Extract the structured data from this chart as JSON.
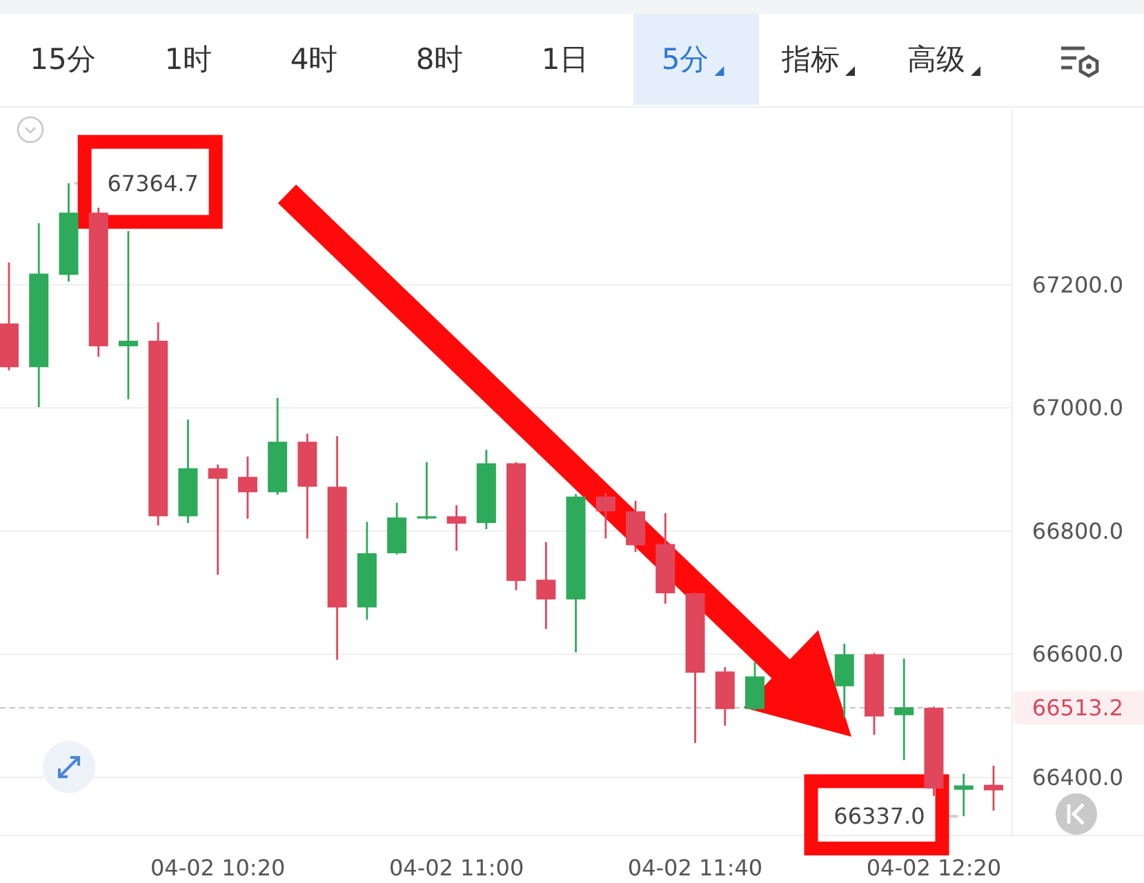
{
  "chart_data": {
    "type": "candlestick",
    "categories": [
      null,
      null,
      null,
      null,
      null,
      null,
      null,
      "04-02 10:20",
      null,
      null,
      null,
      null,
      null,
      null,
      null,
      "04-02 11:00",
      null,
      null,
      null,
      null,
      null,
      null,
      null,
      "04-02 11:40",
      null,
      null,
      null,
      null,
      null,
      null,
      null,
      "04-02 12:20",
      null,
      null
    ],
    "ohlc": [
      [
        67137,
        67236,
        67061,
        67066
      ],
      [
        67066,
        67300,
        67001,
        67218
      ],
      [
        67216,
        67364.7,
        67205,
        67317
      ],
      [
        67317,
        67325,
        67083,
        67100
      ],
      [
        67100,
        67287,
        67014,
        67109
      ],
      [
        67109,
        67139,
        66809,
        66824
      ],
      [
        66824,
        66981,
        66813,
        66902
      ],
      [
        66902,
        66908,
        66729,
        66885
      ],
      [
        66888,
        66921,
        66820,
        66863
      ],
      [
        66863,
        67016,
        66859,
        66945
      ],
      [
        66945,
        66958,
        66788,
        66872
      ],
      [
        66872,
        66954,
        66591,
        66676
      ],
      [
        66676,
        66815,
        66656,
        66764
      ],
      [
        66764,
        66846,
        66762,
        66822
      ],
      [
        66821,
        66912,
        66819,
        66824
      ],
      [
        66824,
        66842,
        66768,
        66812
      ],
      [
        66813,
        66932,
        66803,
        66910
      ],
      [
        66910,
        66912,
        66704,
        66719
      ],
      [
        66721,
        66782,
        66641,
        66689
      ],
      [
        66689,
        66860,
        66603,
        66856
      ],
      [
        66856,
        66862,
        66788,
        66832
      ],
      [
        66832,
        66849,
        66766,
        66777
      ],
      [
        66779,
        66829,
        66682,
        66699
      ],
      [
        66699,
        66700,
        66456,
        66570
      ],
      [
        66572,
        66579,
        66484,
        66511
      ],
      [
        66511,
        66587,
        66508,
        66564
      ],
      null,
      null,
      [
        66548,
        66617,
        66497,
        66600
      ],
      [
        66600,
        66602,
        66469,
        66499
      ],
      [
        66501,
        66593,
        66428,
        66514
      ],
      [
        66513,
        66515,
        66370,
        66382
      ],
      [
        66380,
        66406,
        66337.0,
        66387
      ],
      [
        66388,
        66419,
        66346,
        66379
      ]
    ],
    "colors": [
      "#e0465c",
      "#2daa5a",
      "#2daa5a",
      "#e0465c",
      "#2daa5a",
      "#e0465c",
      "#2daa5a",
      "#e0465c",
      "#e0465c",
      "#2daa5a",
      "#e0465c",
      "#e0465c",
      "#2daa5a",
      "#2daa5a",
      "#2daa5a",
      "#e0465c",
      "#2daa5a",
      "#e0465c",
      "#e0465c",
      "#2daa5a",
      "#e0465c",
      "#e0465c",
      "#e0465c",
      "#e0465c",
      "#e0465c",
      "#2daa5a",
      null,
      null,
      "#2daa5a",
      "#e0465c",
      "#2daa5a",
      "#e0465c",
      "#2daa5a",
      "#e0465c"
    ],
    "ylim": [
      66307,
      67483
    ],
    "yticks": [
      {
        "value": 66400,
        "label": "66400.0"
      },
      {
        "value": 66600,
        "label": "66600.0"
      },
      {
        "value": 66800,
        "label": "66800.0"
      },
      {
        "value": 67000,
        "label": "67000.0"
      },
      {
        "value": 67200,
        "label": "67200.0"
      }
    ],
    "grid": "y",
    "ref_lines": [
      {
        "axis": "y",
        "value": 66513.2,
        "label": "66513.2",
        "color": "#c4c4c4",
        "line_style": "dashed"
      }
    ],
    "annotations": [
      "15分",
      "1时",
      "4时",
      "8时",
      "1日",
      "5分",
      "指标",
      "高级",
      "67364.7",
      "66337.0"
    ]
  }
}
